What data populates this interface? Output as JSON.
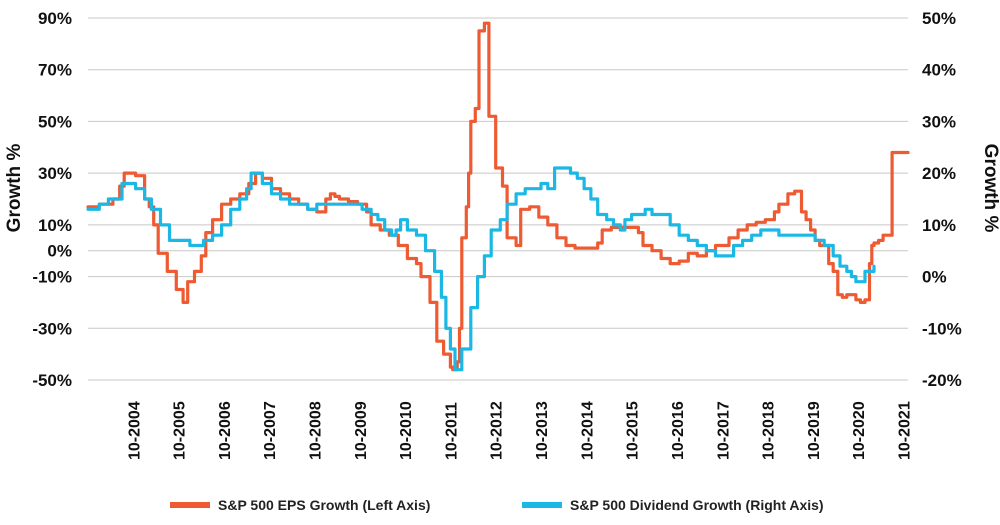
{
  "chart_data": {
    "type": "line",
    "title": "",
    "y_left": {
      "label": "Growth %",
      "ticks": [
        90,
        70,
        50,
        30,
        10,
        0,
        -10,
        -30,
        -50
      ],
      "tick_labels": [
        "90%",
        "70%",
        "50%",
        "30%",
        "10%",
        "0%",
        "-10%",
        "-30%",
        "-50%"
      ],
      "range": [
        -50,
        90
      ]
    },
    "y_right": {
      "label": "Growth %",
      "ticks": [
        50,
        40,
        30,
        20,
        10,
        0,
        -10,
        -20
      ],
      "tick_labels": [
        "50%",
        "40%",
        "30%",
        "20%",
        "10%",
        "0%",
        "-10%",
        "-20%"
      ],
      "range": [
        -20,
        50
      ]
    },
    "x_axis": {
      "tick_labels": [
        "10-2004",
        "10-2005",
        "10-2006",
        "10-2007",
        "10-2008",
        "10-2009",
        "10-2010",
        "10-2011",
        "10-2012",
        "10-2013",
        "10-2014",
        "10-2015",
        "10-2016",
        "10-2017",
        "10-2018",
        "10-2019",
        "10-2020",
        "10-2021"
      ],
      "range": [
        2003.75,
        2021.85
      ]
    },
    "grid": true,
    "legend_position": "bottom",
    "series": [
      {
        "name": "S&P 500 EPS Growth (Left Axis)",
        "axis": "left",
        "color": "#ee5a32",
        "x": [
          2003.75,
          2004.0,
          2004.3,
          2004.45,
          2004.55,
          2004.8,
          2005.0,
          2005.1,
          2005.2,
          2005.3,
          2005.5,
          2005.7,
          2005.85,
          2005.95,
          2006.1,
          2006.25,
          2006.35,
          2006.5,
          2006.7,
          2006.9,
          2007.1,
          2007.3,
          2007.45,
          2007.6,
          2007.8,
          2008.0,
          2008.2,
          2008.4,
          2008.6,
          2008.8,
          2009.0,
          2009.1,
          2009.2,
          2009.3,
          2009.5,
          2009.7,
          2009.9,
          2010.0,
          2010.2,
          2010.4,
          2010.6,
          2010.8,
          2011.0,
          2011.1,
          2011.3,
          2011.45,
          2011.6,
          2011.75,
          2011.8,
          2011.9,
          2011.95,
          2012.0,
          2012.1,
          2012.15,
          2012.2,
          2012.3,
          2012.38,
          2012.5,
          2012.6,
          2012.75,
          2012.9,
          2013.0,
          2013.2,
          2013.3,
          2013.5,
          2013.7,
          2013.9,
          2014.1,
          2014.3,
          2014.5,
          2014.7,
          2015.0,
          2015.1,
          2015.3,
          2015.6,
          2015.9,
          2016.0,
          2016.2,
          2016.4,
          2016.6,
          2016.8,
          2017.0,
          2017.2,
          2017.4,
          2017.6,
          2017.9,
          2018.1,
          2018.3,
          2018.5,
          2018.7,
          2018.9,
          2019.0,
          2019.2,
          2019.35,
          2019.5,
          2019.6,
          2019.7,
          2019.8,
          2019.9,
          2020.1,
          2020.2,
          2020.3,
          2020.4,
          2020.5,
          2020.7,
          2020.8,
          2020.9,
          2021.0,
          2021.05,
          2021.1,
          2021.2,
          2021.3,
          2021.5,
          2021.7,
          2021.85
        ],
        "y": [
          17,
          18,
          20,
          25,
          30,
          29,
          20,
          17,
          10,
          -1,
          -8,
          -15,
          -20,
          -12,
          -8,
          -2,
          7,
          12,
          18,
          20,
          22,
          26,
          30,
          28,
          24,
          22,
          20,
          18,
          16,
          15,
          20,
          22,
          21,
          20,
          19,
          18,
          15,
          10,
          8,
          6,
          2,
          -3,
          -5,
          -10,
          -20,
          -35,
          -40,
          -45,
          -46,
          -43,
          -30,
          5,
          17,
          30,
          50,
          55,
          85,
          88,
          52,
          32,
          25,
          5,
          2,
          16,
          17,
          13,
          10,
          5,
          2,
          1,
          1,
          3,
          8,
          9,
          9,
          7,
          2,
          0,
          -3,
          -5,
          -4,
          -1,
          -2,
          0,
          2,
          5,
          8,
          10,
          11,
          12,
          15,
          18,
          22,
          23,
          15,
          12,
          8,
          4,
          2,
          -5,
          -8,
          -17,
          -18,
          -17,
          -19,
          -20,
          -19,
          -5,
          2,
          3,
          4,
          6,
          38,
          38,
          38
        ]
      },
      {
        "name": "S&P 500 Dividend Growth (Right Axis)",
        "axis": "right",
        "color": "#1bb8e6",
        "x": [
          2003.75,
          2004.0,
          2004.2,
          2004.4,
          2004.5,
          2004.65,
          2004.8,
          2005.0,
          2005.15,
          2005.35,
          2005.55,
          2005.8,
          2006.0,
          2006.15,
          2006.3,
          2006.5,
          2006.7,
          2006.9,
          2007.1,
          2007.25,
          2007.35,
          2007.45,
          2007.6,
          2007.8,
          2008.0,
          2008.2,
          2008.4,
          2008.6,
          2008.8,
          2009.0,
          2009.2,
          2009.4,
          2009.6,
          2009.8,
          2010.0,
          2010.15,
          2010.3,
          2010.45,
          2010.55,
          2010.65,
          2010.8,
          2011.0,
          2011.2,
          2011.4,
          2011.55,
          2011.65,
          2011.75,
          2011.85,
          2012.0,
          2012.2,
          2012.35,
          2012.5,
          2012.65,
          2012.85,
          2013.0,
          2013.2,
          2013.4,
          2013.6,
          2013.75,
          2013.9,
          2014.05,
          2014.2,
          2014.4,
          2014.55,
          2014.7,
          2014.85,
          2015.0,
          2015.2,
          2015.35,
          2015.5,
          2015.6,
          2015.75,
          2015.9,
          2016.05,
          2016.2,
          2016.4,
          2016.6,
          2016.8,
          2017.0,
          2017.2,
          2017.4,
          2017.6,
          2017.8,
          2018.0,
          2018.2,
          2018.4,
          2018.6,
          2018.8,
          2019.0,
          2019.2,
          2019.4,
          2019.6,
          2019.8,
          2020.0,
          2020.2,
          2020.35,
          2020.5,
          2020.6,
          2020.7,
          2020.8,
          2020.9,
          2021.0,
          2021.1
        ],
        "y": [
          13,
          14,
          15,
          15,
          18,
          18,
          17,
          15,
          13,
          10,
          7,
          7,
          6,
          6,
          7,
          8,
          10,
          13,
          15,
          17,
          20,
          20,
          18,
          16,
          15,
          14,
          14,
          13,
          14,
          14,
          14,
          14,
          14,
          13,
          12,
          11,
          9,
          8,
          9,
          11,
          9,
          8,
          5,
          1,
          -4,
          -10,
          -14,
          -18,
          -14,
          -6,
          0,
          4,
          9,
          11,
          14,
          16,
          17,
          17,
          18,
          17,
          21,
          21,
          20,
          19,
          17,
          15,
          12,
          11,
          10,
          9,
          11,
          12,
          12,
          13,
          12,
          12,
          10,
          8,
          7,
          6,
          5,
          4,
          4,
          6,
          7,
          8,
          9,
          9,
          8,
          8,
          8,
          8,
          7,
          6,
          4,
          2,
          1,
          0,
          -1,
          -1,
          1,
          1,
          2
        ]
      }
    ]
  }
}
